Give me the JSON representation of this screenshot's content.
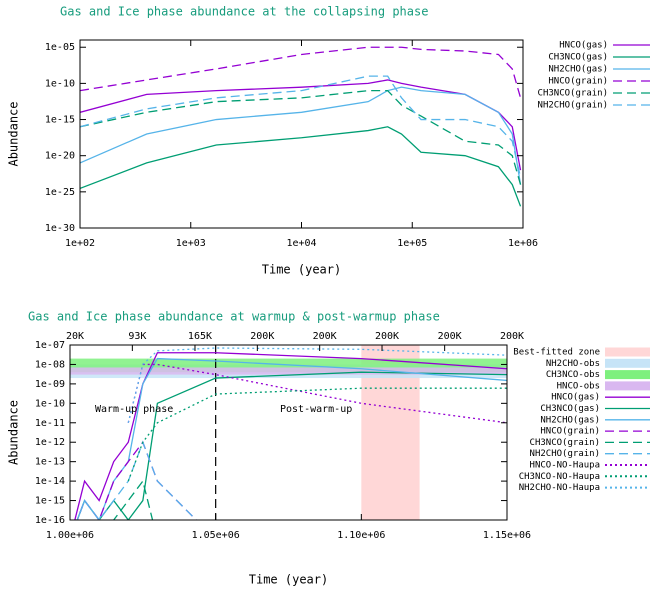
{
  "chart_data": [
    {
      "type": "line",
      "title": "Gas and Ice phase abundance at the collapsing phase",
      "xlabel": "Time (year)",
      "ylabel": "Abundance",
      "xlog": true,
      "ylog": true,
      "title_color": "#179c7d",
      "xlim": [
        100,
        1000000
      ],
      "xticks": [
        {
          "value": 100,
          "label": "1e+02"
        },
        {
          "value": 1000,
          "label": "1e+03"
        },
        {
          "value": 10000,
          "label": "1e+04"
        },
        {
          "value": 100000,
          "label": "1e+05"
        },
        {
          "value": 1000000,
          "label": "1e+06"
        }
      ],
      "ylim": [
        1e-30,
        0.0001
      ],
      "yticks": [
        {
          "value": 1e-05,
          "label": "1e-05"
        },
        {
          "value": 1e-10,
          "label": "1e-10"
        },
        {
          "value": 1e-15,
          "label": "1e-15"
        },
        {
          "value": 1e-20,
          "label": "1e-20"
        },
        {
          "value": 1e-25,
          "label": "1e-25"
        },
        {
          "value": 1e-30,
          "label": "1e-30"
        }
      ],
      "x": [
        100,
        400,
        1700,
        10000,
        40000,
        60000,
        80000,
        120000,
        300000,
        600000,
        800000,
        950000
      ],
      "series": [
        {
          "name": "HNCO(gas)",
          "color": "#9400d3",
          "dash": "solid",
          "values": [
            1e-14,
            3e-12,
            1e-11,
            3e-11,
            1e-10,
            3e-10,
            1e-10,
            3e-11,
            3e-12,
            1e-14,
            1e-16,
            1e-22
          ]
        },
        {
          "name": "CH3NCO(gas)",
          "color": "#009e73",
          "dash": "solid",
          "values": [
            3e-25,
            1e-21,
            3e-19,
            3e-18,
            3e-17,
            1e-16,
            1e-17,
            3e-20,
            1e-20,
            3e-22,
            1e-24,
            1e-27
          ]
        },
        {
          "name": "NH2CHO(gas)",
          "color": "#56b4e9",
          "dash": "solid",
          "values": [
            1e-21,
            1e-17,
            1e-15,
            1e-14,
            3e-13,
            1e-11,
            3e-11,
            1e-11,
            3e-12,
            1e-14,
            1e-17,
            1e-24
          ]
        },
        {
          "name": "HNCO(grain)",
          "color": "#9400d3",
          "dash": "dashed",
          "values": [
            1e-11,
            3e-10,
            1e-08,
            1e-06,
            1e-05,
            1e-05,
            1e-05,
            5e-06,
            3e-06,
            1e-06,
            1e-08,
            1e-12
          ]
        },
        {
          "name": "CH3NCO(grain)",
          "color": "#009e73",
          "dash": "dashed",
          "values": [
            1e-16,
            1e-14,
            3e-13,
            1e-12,
            1e-11,
            1e-11,
            1e-13,
            3e-15,
            1e-18,
            3e-19,
            1e-20,
            1e-24
          ]
        },
        {
          "name": "NH2CHO(grain)",
          "color": "#56b4e9",
          "dash": "dashed",
          "values": [
            1e-16,
            3e-14,
            1e-12,
            1e-11,
            1e-09,
            1e-09,
            1e-12,
            1e-15,
            1e-15,
            1e-16,
            1e-18,
            1e-23
          ]
        }
      ]
    },
    {
      "type": "line",
      "title": "Gas and Ice phase abundance at warmup & post-warmup phase",
      "xlabel": "Time (year)",
      "ylabel": "Abundance",
      "xlog": false,
      "ylog": true,
      "title_color": "#179c7d",
      "xlim": [
        1000000,
        1150000
      ],
      "xticks": [
        {
          "value": 1000000,
          "label": "1.00e+06"
        },
        {
          "value": 1050000,
          "label": "1.05e+06"
        },
        {
          "value": 1100000,
          "label": "1.10e+06"
        },
        {
          "value": 1150000,
          "label": "1.15e+06"
        }
      ],
      "x2ticks": [
        {
          "value": 1000000,
          "label": "20K"
        },
        {
          "value": 1021400,
          "label": "93K"
        },
        {
          "value": 1042900,
          "label": "165K"
        },
        {
          "value": 1064300,
          "label": "200K"
        },
        {
          "value": 1085700,
          "label": "200K"
        },
        {
          "value": 1107100,
          "label": "200K"
        },
        {
          "value": 1128600,
          "label": "200K"
        },
        {
          "value": 1150000,
          "label": "200K"
        }
      ],
      "ylim": [
        1e-16,
        1e-07
      ],
      "yticks": [
        {
          "value": 1e-07,
          "label": "1e-07"
        },
        {
          "value": 1e-08,
          "label": "1e-08"
        },
        {
          "value": 1e-09,
          "label": "1e-09"
        },
        {
          "value": 1e-10,
          "label": "1e-10"
        },
        {
          "value": 1e-11,
          "label": "1e-11"
        },
        {
          "value": 1e-12,
          "label": "1e-12"
        },
        {
          "value": 1e-13,
          "label": "1e-13"
        },
        {
          "value": 1e-14,
          "label": "1e-14"
        },
        {
          "value": 1e-15,
          "label": "1e-15"
        },
        {
          "value": 1e-16,
          "label": "1e-16"
        }
      ],
      "zones": [
        {
          "name": "Best-fitted zone",
          "color": "#ffd7d7",
          "xlim": [
            1100000,
            1120000
          ]
        }
      ],
      "bands": [
        {
          "name": "NH2CHO-obs",
          "color": "#c6e4f7",
          "ylim": [
            2e-09,
            1e-08
          ]
        },
        {
          "name": "CH3NCO-obs",
          "color": "#7ef07e",
          "ylim": [
            4e-09,
            2e-08
          ]
        },
        {
          "name": "HNCO-obs",
          "color": "#d9b8f0",
          "ylim": [
            3e-09,
            7e-09
          ]
        }
      ],
      "vlines": [
        1050000
      ],
      "annotations": [
        "Warm-up phase",
        "Post-warm-up"
      ],
      "x": [
        1000000,
        1005000,
        1010000,
        1015000,
        1020000,
        1025000,
        1030000,
        1050000,
        1100000,
        1150000
      ],
      "series": [
        {
          "name": "HNCO(gas)",
          "color": "#9400d3",
          "dash": "solid",
          "values": [
            1e-17,
            1e-14,
            1e-15,
            1e-13,
            1e-12,
            1e-09,
            4e-08,
            4e-08,
            2e-08,
            6e-09
          ]
        },
        {
          "name": "CH3NCO(gas)",
          "color": "#009e73",
          "dash": "solid",
          "values": [
            1e-17,
            1e-15,
            1e-16,
            1e-15,
            1e-16,
            1e-15,
            1e-10,
            2e-09,
            4e-09,
            3e-09
          ]
        },
        {
          "name": "NH2CHO(gas)",
          "color": "#56b4e9",
          "dash": "solid",
          "values": [
            1e-17,
            1e-15,
            1e-16,
            1e-14,
            1e-13,
            1e-09,
            2e-08,
            1.5e-08,
            6e-09,
            1.5e-09
          ]
        },
        {
          "name": "HNCO(grain)",
          "color": "#9400d3",
          "dash": "dashed",
          "values": [
            1e-17,
            1e-15,
            1e-16,
            1e-14,
            1e-13,
            1e-12,
            1e-14,
            1e-17,
            null,
            null
          ]
        },
        {
          "name": "CH3NCO(grain)",
          "color": "#009e73",
          "dash": "dashed",
          "values": [
            1e-17,
            1e-16,
            1e-17,
            1e-16,
            1e-15,
            1e-14,
            1e-17,
            null,
            null,
            null
          ]
        },
        {
          "name": "NH2CHO(grain)",
          "color": "#56b4e9",
          "dash": "dashed",
          "values": [
            1e-17,
            1e-15,
            1e-16,
            1e-15,
            1e-14,
            1e-12,
            1e-14,
            1e-17,
            null,
            null
          ]
        },
        {
          "name": "HNCO-NO-Haupa",
          "color": "#9400d3",
          "dash": "dotted",
          "values": [
            null,
            null,
            null,
            null,
            1e-11,
            1e-08,
            1e-08,
            3e-09,
            1e-10,
            1e-11
          ]
        },
        {
          "name": "CH3NCO-NO-Haupa",
          "color": "#009e73",
          "dash": "dotted",
          "values": [
            null,
            null,
            null,
            null,
            1e-14,
            1e-12,
            1e-11,
            3e-10,
            6e-10,
            6e-10
          ]
        },
        {
          "name": "NH2CHO-NO-Haupa",
          "color": "#56b4e9",
          "dash": "dotted",
          "values": [
            null,
            null,
            null,
            null,
            1e-11,
            1e-08,
            5e-08,
            7e-08,
            6e-08,
            3e-08
          ]
        }
      ]
    }
  ]
}
